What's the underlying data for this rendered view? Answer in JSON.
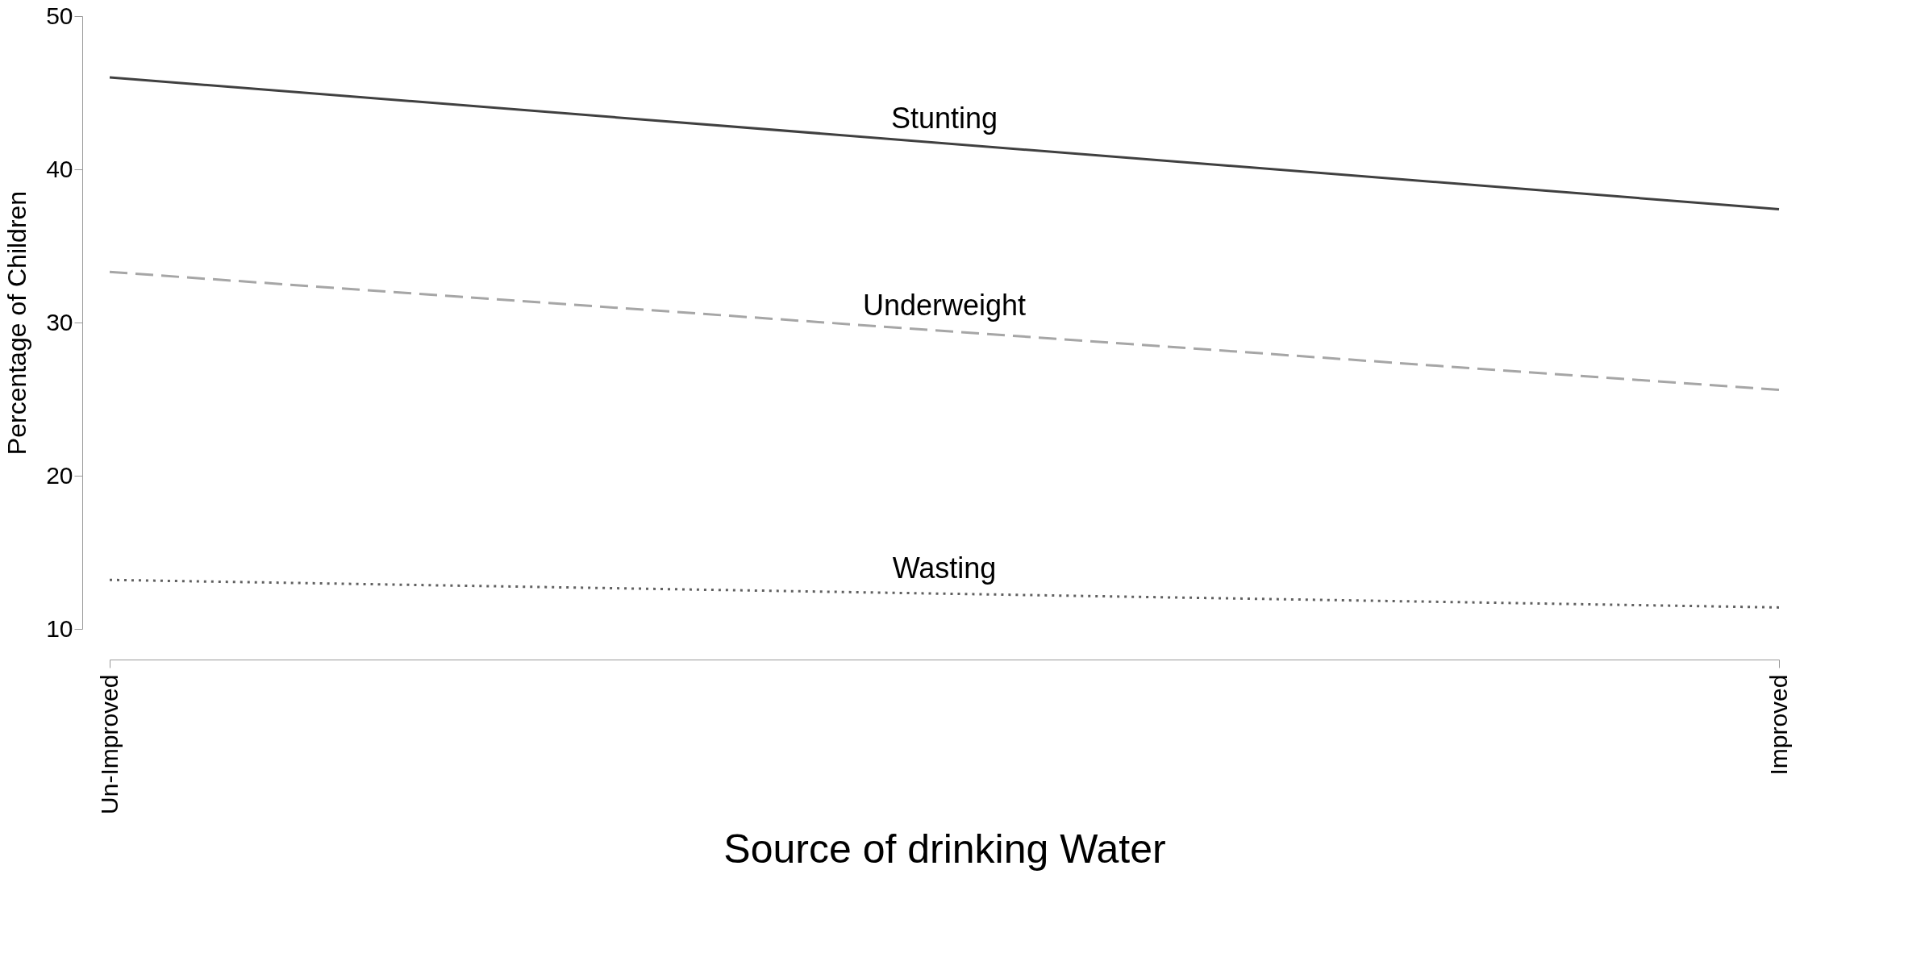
{
  "chart_data": {
    "type": "line",
    "xlabel": "Source of drinking Water",
    "ylabel": "Percentage of Children",
    "categories": [
      "Un-Improved",
      "Improved"
    ],
    "ylim": [
      10,
      50
    ],
    "yticks": [
      10,
      20,
      30,
      40,
      50
    ],
    "grid": false,
    "marker": "none",
    "series": [
      {
        "name": "Stunting",
        "color": "#404040",
        "line_style": "solid",
        "values": [
          46,
          37.4
        ]
      },
      {
        "name": "Underweight",
        "color": "#a6a6a6",
        "line_style": "dashed",
        "values": [
          33.3,
          25.6
        ]
      },
      {
        "name": "Wasting",
        "color": "#606060",
        "line_style": "dotted",
        "values": [
          13.2,
          11.4
        ]
      }
    ]
  }
}
